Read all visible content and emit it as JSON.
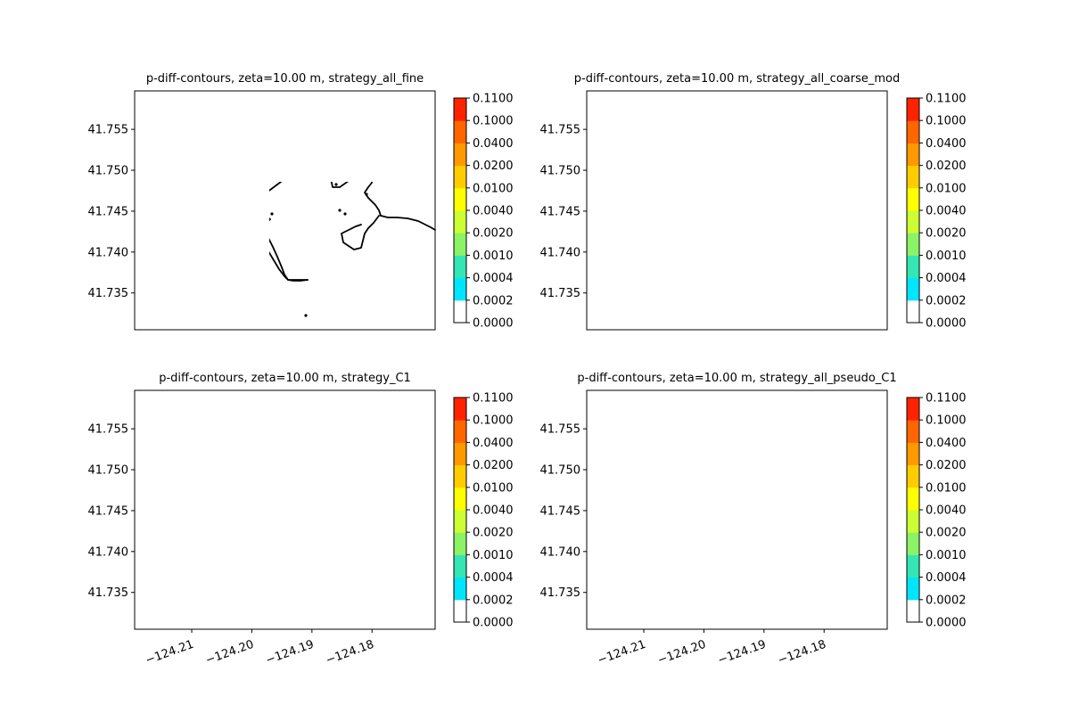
{
  "chart_data": [
    {
      "type": "contour",
      "title": "p-diff-contours, zeta=10.00 m, strategy_all_fine",
      "xlim": [
        -124.2195,
        -124.1695
      ],
      "ylim": [
        41.7305,
        41.7597
      ],
      "yticks": [
        "41.735",
        "41.740",
        "41.745",
        "41.750",
        "41.755"
      ],
      "xticks": [],
      "colorbar": {
        "levels": [
          "0.0000",
          "0.0002",
          "0.0004",
          "0.0010",
          "0.0020",
          "0.0040",
          "0.0100",
          "0.0200",
          "0.0400",
          "0.1000",
          "0.1100"
        ]
      },
      "highlight": false
    },
    {
      "type": "contour",
      "title": "p-diff-contours, zeta=10.00 m, strategy_all_coarse_mod",
      "xlim": [
        -124.2195,
        -124.1695
      ],
      "ylim": [
        41.7305,
        41.7597
      ],
      "yticks": [
        "41.735",
        "41.740",
        "41.745",
        "41.750",
        "41.755"
      ],
      "xticks": [],
      "colorbar": {
        "levels": [
          "0.0000",
          "0.0002",
          "0.0004",
          "0.0010",
          "0.0020",
          "0.0040",
          "0.0100",
          "0.0200",
          "0.0400",
          "0.1000",
          "0.1100"
        ]
      },
      "highlight": false
    },
    {
      "type": "contour",
      "title": "p-diff-contours, zeta=10.00 m, strategy_C1",
      "xlim": [
        -124.2195,
        -124.1695
      ],
      "ylim": [
        41.7305,
        41.7597
      ],
      "yticks": [
        "41.735",
        "41.740",
        "41.745",
        "41.750",
        "41.755"
      ],
      "xticks": [
        "−124.21",
        "−124.20",
        "−124.19",
        "−124.18"
      ],
      "colorbar": {
        "levels": [
          "0.0000",
          "0.0002",
          "0.0004",
          "0.0010",
          "0.0020",
          "0.0040",
          "0.0100",
          "0.0200",
          "0.0400",
          "0.1000",
          "0.1100"
        ]
      },
      "highlight": true
    },
    {
      "type": "contour",
      "title": "p-diff-contours, zeta=10.00 m, strategy_all_pseudo_C1",
      "xlim": [
        -124.2195,
        -124.1695
      ],
      "ylim": [
        41.7305,
        41.7597
      ],
      "yticks": [
        "41.735",
        "41.740",
        "41.745",
        "41.750",
        "41.755"
      ],
      "xticks": [
        "−124.21",
        "−124.20",
        "−124.19",
        "−124.18"
      ],
      "colorbar": {
        "levels": [
          "0.0000",
          "0.0002",
          "0.0004",
          "0.0010",
          "0.0020",
          "0.0040",
          "0.0100",
          "0.0200",
          "0.0400",
          "0.1000",
          "0.1100"
        ]
      },
      "highlight": false
    }
  ],
  "colors": {
    "colorbar_bins": [
      "#ffffff",
      "#00e5ff",
      "#33e6b3",
      "#8cf266",
      "#ccff33",
      "#ffff00",
      "#ffcc00",
      "#ff9900",
      "#ff6600",
      "#ff2200"
    ],
    "coastline": "#000000",
    "highlight": "#00e5ff"
  }
}
